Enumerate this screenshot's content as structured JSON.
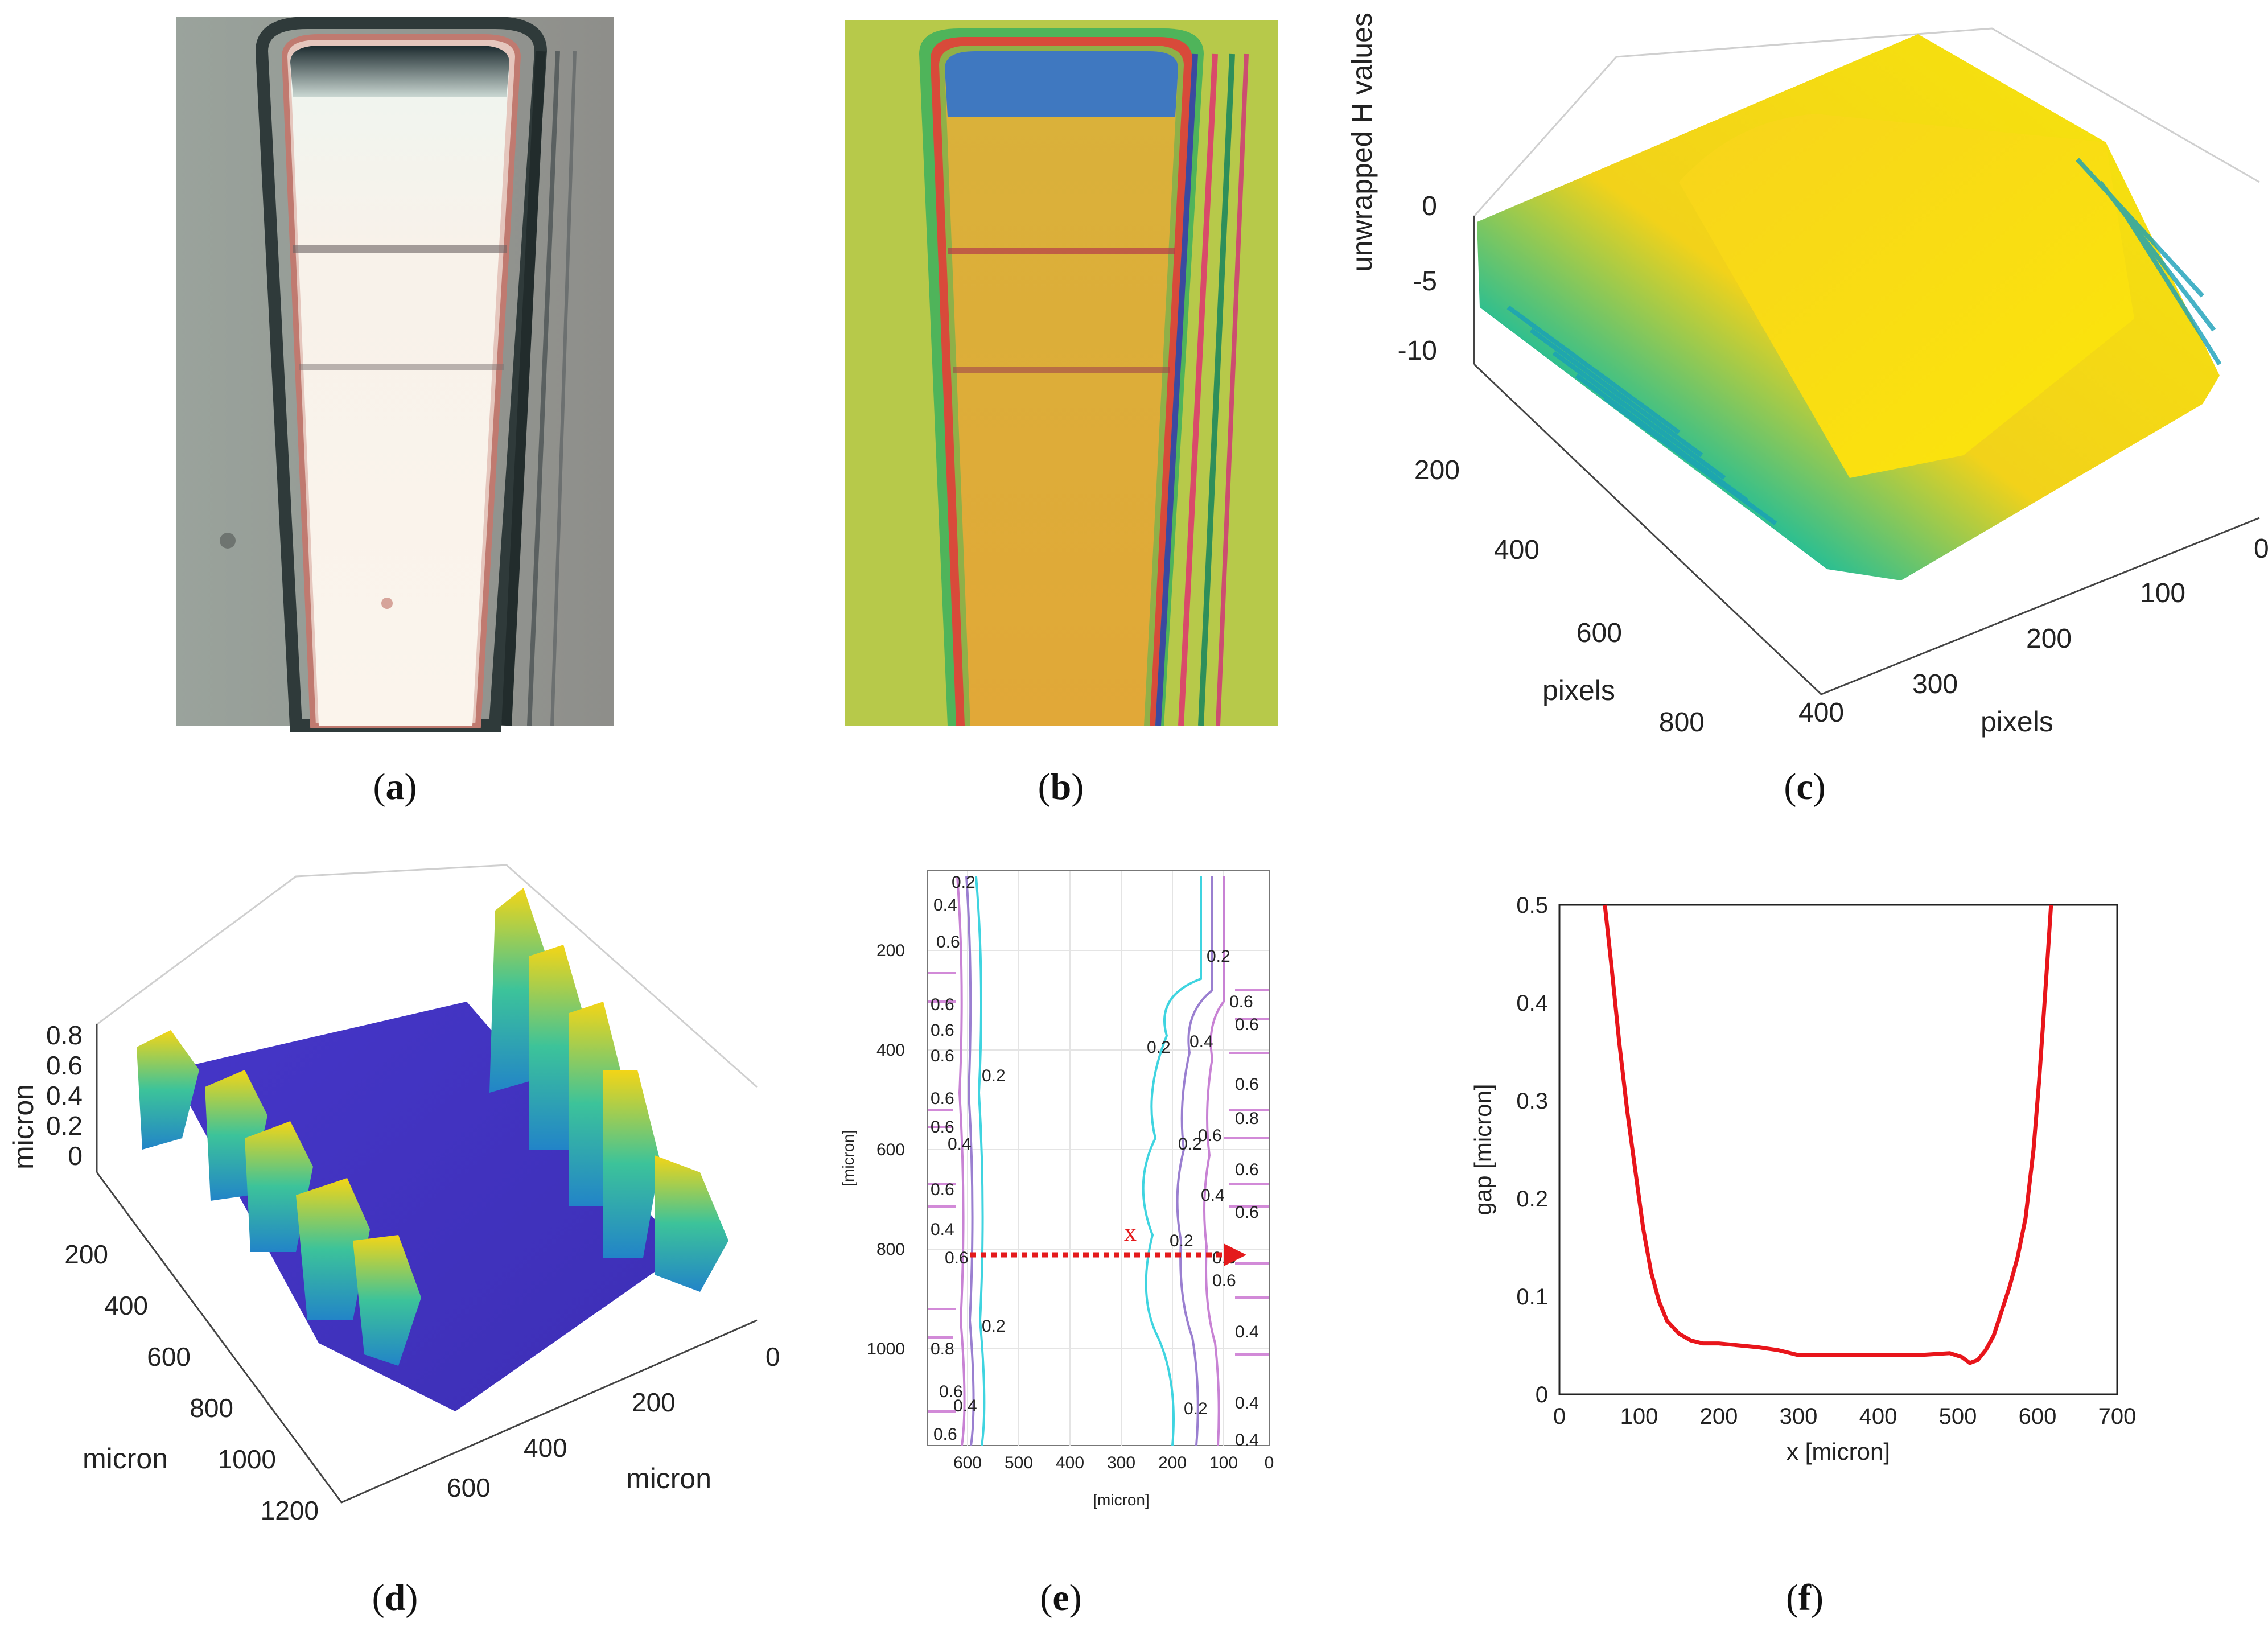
{
  "captions": {
    "a": {
      "open": "(",
      "letter": "a",
      "close": ")"
    },
    "b": {
      "open": "(",
      "letter": "b",
      "close": ")"
    },
    "c": {
      "open": "(",
      "letter": "c",
      "close": ")"
    },
    "d": {
      "open": "(",
      "letter": "d",
      "close": ")"
    },
    "e": {
      "open": "(",
      "letter": "e",
      "close": ")"
    },
    "f": {
      "open": "(",
      "letter": "f",
      "close": ")"
    }
  },
  "panel_c": {
    "zlabel": "unwrapped H values",
    "z_ticks": [
      "0",
      "-5",
      "-10"
    ],
    "y_ticks": [
      "200",
      "400",
      "600",
      "800"
    ],
    "x_ticks": [
      "0",
      "100",
      "200",
      "300",
      "400"
    ],
    "ylabel": "pixels",
    "xlabel": "pixels"
  },
  "panel_d": {
    "zlabel": "micron",
    "z_ticks": [
      "0.8",
      "0.6",
      "0.4",
      "0.2",
      "0"
    ],
    "y_ticks": [
      "200",
      "400",
      "600",
      "800",
      "1000",
      "1200"
    ],
    "x_ticks": [
      "0",
      "200",
      "400",
      "600"
    ],
    "ylabel": "micron",
    "xlabel": "micron"
  },
  "panel_e": {
    "ylabel": "[micron]",
    "xlabel": "[micron]",
    "y_ticks": [
      "200",
      "400",
      "600",
      "800",
      "1000"
    ],
    "x_ticks": [
      "600",
      "500",
      "400",
      "300",
      "200",
      "100",
      "0"
    ],
    "arrow_label": "x",
    "contour_labels_left": [
      "0.2",
      "0.4",
      "0.6",
      "0.6",
      "0.6",
      "0.6",
      "0.6",
      "0.2",
      "0.6",
      "0.4",
      "0.6",
      "0.4",
      "0.6",
      "0.2",
      "0.8",
      "0.6",
      "0.4",
      "0.6"
    ],
    "contour_labels_right": [
      "0.2",
      "0.6",
      "0.6",
      "0.2",
      "0.4",
      "0.6",
      "0.8",
      "0.6",
      "0.2",
      "0.6",
      "0.4",
      "0.6",
      "0.2",
      "0.6",
      "0.6",
      "0.4",
      "0.4",
      "0.2",
      "0.4"
    ]
  },
  "chart_data": {
    "type": "line",
    "xlabel": "x [micron]",
    "ylabel": "gap [micron]",
    "xlim": [
      0,
      700
    ],
    "ylim": [
      0,
      0.5
    ],
    "x_ticks": [
      0,
      100,
      200,
      300,
      400,
      500,
      600,
      700
    ],
    "y_ticks": [
      0,
      0.1,
      0.2,
      0.3,
      0.4,
      0.5
    ],
    "line_color": "#e8151b",
    "series": [
      {
        "name": "gap",
        "x": [
          57,
          65,
          75,
          85,
          95,
          105,
          115,
          125,
          135,
          150,
          165,
          180,
          200,
          225,
          250,
          275,
          300,
          325,
          350,
          400,
          450,
          490,
          505,
          515,
          525,
          535,
          545,
          555,
          565,
          575,
          585,
          595,
          602,
          608,
          613,
          617
        ],
        "y": [
          0.5,
          0.44,
          0.36,
          0.29,
          0.23,
          0.17,
          0.125,
          0.095,
          0.075,
          0.062,
          0.055,
          0.052,
          0.052,
          0.05,
          0.048,
          0.045,
          0.04,
          0.04,
          0.04,
          0.04,
          0.04,
          0.042,
          0.038,
          0.032,
          0.035,
          0.045,
          0.06,
          0.085,
          0.11,
          0.14,
          0.18,
          0.25,
          0.32,
          0.39,
          0.45,
          0.5
        ]
      }
    ]
  }
}
